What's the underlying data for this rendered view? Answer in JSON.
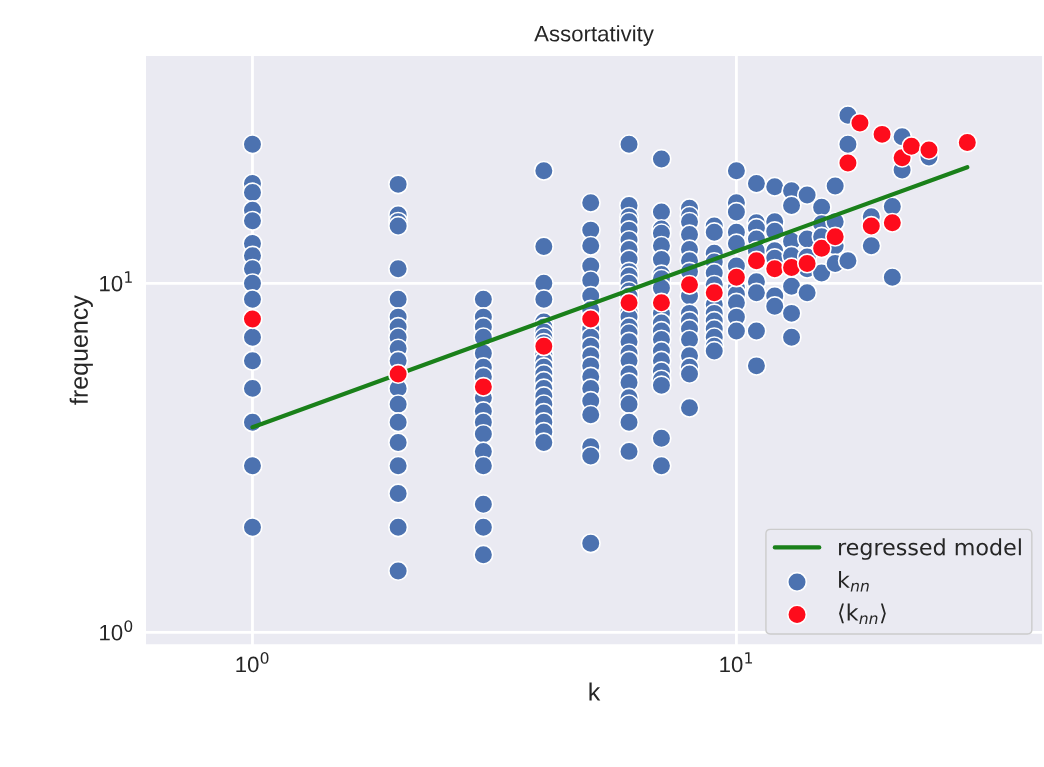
{
  "chart_data": {
    "type": "scatter",
    "title": "Assortativity",
    "xlabel": "k",
    "ylabel": "frequency",
    "log": "xy",
    "grid": true,
    "legend": "bottom right",
    "xlim": [
      0.6,
      43
    ],
    "ylim": [
      0.92,
      45
    ],
    "xticks": [
      {
        "value": 1,
        "label": "10$^{0}$"
      },
      {
        "value": 10,
        "label": "10$^{1}$"
      }
    ],
    "yticks": [
      {
        "value": 1,
        "label": "10$^{0}$"
      },
      {
        "value": 10,
        "label": "10$^{1}$"
      }
    ],
    "series": [
      {
        "name": "regressed model",
        "type": "line",
        "color": "#1a801a",
        "x": [
          1,
          30
        ],
        "values": [
          3.87,
          21.5
        ]
      },
      {
        "name": "k$_{nn}$",
        "type": "scatter",
        "marker": "circle",
        "color": "#4c72b0",
        "x": [
          1,
          1,
          1,
          1,
          1,
          1,
          1,
          1,
          1,
          1,
          1,
          1,
          1,
          1,
          1,
          1,
          2,
          2,
          2,
          2,
          2,
          2,
          2,
          2,
          2,
          2,
          2,
          2,
          2,
          2,
          2,
          2,
          2,
          2,
          2,
          3,
          3,
          3,
          3,
          3,
          3,
          3,
          3,
          3,
          3,
          3,
          3,
          3,
          3,
          3,
          3,
          4,
          4,
          4,
          4,
          4,
          4,
          4,
          4,
          4,
          4,
          4,
          4,
          4,
          4,
          4,
          4,
          4,
          4,
          4,
          4,
          4,
          5,
          5,
          5,
          5,
          5,
          5,
          5,
          5,
          5,
          5,
          5,
          5,
          5,
          5,
          5,
          5,
          5,
          5,
          5,
          6,
          6,
          6,
          6,
          6,
          6,
          6,
          6,
          6,
          6,
          6,
          6,
          6,
          6,
          6,
          6,
          6,
          6,
          6,
          6,
          6,
          6,
          6,
          6,
          6,
          6,
          7,
          7,
          7,
          7,
          7,
          7,
          7,
          7,
          7,
          7,
          7,
          7,
          7,
          7,
          7,
          7,
          7,
          7,
          7,
          7,
          8,
          8,
          8,
          8,
          8,
          8,
          8,
          8,
          8,
          8,
          8,
          8,
          8,
          8,
          8,
          8,
          9,
          9,
          9,
          9,
          9,
          9,
          9,
          9,
          9,
          9,
          9,
          9,
          9,
          10,
          10,
          10,
          10,
          10,
          10,
          10,
          10,
          10,
          10,
          10,
          11,
          11,
          11,
          11,
          11,
          11,
          11,
          11,
          11,
          12,
          12,
          12,
          12,
          12,
          12,
          12,
          13,
          13,
          13,
          13,
          13,
          13,
          13,
          14,
          14,
          14,
          14,
          14,
          15,
          15,
          15,
          15,
          16,
          16,
          16,
          16,
          17,
          17,
          17,
          19,
          19,
          21,
          21,
          22,
          22,
          25
        ],
        "values": [
          25,
          19.3,
          18.2,
          16.2,
          15.1,
          13,
          12,
          11,
          10,
          9,
          7,
          6,
          5,
          4,
          3,
          2,
          19.2,
          15.7,
          15,
          14.6,
          11,
          9,
          8,
          7.5,
          7,
          6.5,
          6,
          5,
          4.5,
          4,
          3.5,
          3,
          2.5,
          2,
          1.5,
          9,
          8,
          7.5,
          7,
          6.3,
          5.75,
          5.4,
          4.7,
          4.3,
          4,
          3.7,
          3.3,
          3,
          2.33,
          2,
          1.67,
          21,
          12.75,
          10,
          9,
          7.75,
          7.5,
          7.25,
          7,
          6.75,
          6.25,
          6,
          5.75,
          5.5,
          5.25,
          5,
          4.75,
          4.5,
          4.25,
          4,
          3.75,
          3.5,
          17,
          14.2,
          12.8,
          11.2,
          10.2,
          9.2,
          8.4,
          7.4,
          7,
          6.6,
          6.2,
          5.8,
          5.4,
          5,
          4.6,
          4.2,
          3.4,
          3.2,
          1.8,
          25,
          16.7,
          15.5,
          15,
          14.2,
          13.3,
          12.5,
          11.7,
          10.8,
          10.5,
          10,
          9.5,
          9.2,
          8.3,
          8,
          7.5,
          7.2,
          6.8,
          6.3,
          6,
          5.5,
          5.2,
          4.7,
          4.5,
          4,
          3.3,
          22.7,
          16,
          14.3,
          13.9,
          12.8,
          11.7,
          10.6,
          10.3,
          9.7,
          8.2,
          7.7,
          7.3,
          6.9,
          6.4,
          6,
          5.6,
          5.3,
          5.1,
          3.6,
          3,
          16.4,
          15.6,
          15,
          13.8,
          12.5,
          11.6,
          10.8,
          9.2,
          8.2,
          7.8,
          7.4,
          6.9,
          6.2,
          5.75,
          5.5,
          4.4,
          14.6,
          14,
          12.2,
          11.5,
          10.7,
          9.9,
          8.7,
          8.2,
          7.8,
          7.4,
          7,
          6.6,
          6.4,
          21,
          17,
          16,
          14,
          13,
          11.2,
          9.7,
          9.3,
          8.8,
          8,
          7.3,
          19.3,
          14.9,
          14.4,
          13.4,
          12.4,
          10.1,
          9.4,
          7.3,
          5.8,
          18.9,
          15,
          14.1,
          12.4,
          11.8,
          9.2,
          8.6,
          18.4,
          16.7,
          13.2,
          12,
          9.8,
          8.2,
          7,
          17.9,
          13.4,
          11.9,
          11,
          9.4,
          16.5,
          14.8,
          13.6,
          10.7,
          19,
          15,
          12.8,
          11.4,
          30.3,
          25,
          11.6,
          15.5,
          12.8,
          16.6,
          10.4,
          26.3,
          21.1,
          23
        ]
      },
      {
        "name": "⟨k$_{nn}$⟩",
        "type": "scatter",
        "marker": "circle",
        "color": "#fe0c1c",
        "x": [
          1,
          2,
          3,
          4,
          5,
          6,
          7,
          8,
          9,
          10,
          11,
          12,
          13,
          14,
          15,
          16,
          17,
          18,
          19,
          20,
          21,
          22,
          23,
          25,
          30
        ],
        "values": [
          7.9,
          5.5,
          5.05,
          6.6,
          7.9,
          8.8,
          8.8,
          9.9,
          9.4,
          10.4,
          11.6,
          11.0,
          11.1,
          11.4,
          12.6,
          13.6,
          22.1,
          28.8,
          14.6,
          26.7,
          14.9,
          22.9,
          24.7,
          24.1,
          25.3
        ]
      }
    ]
  }
}
